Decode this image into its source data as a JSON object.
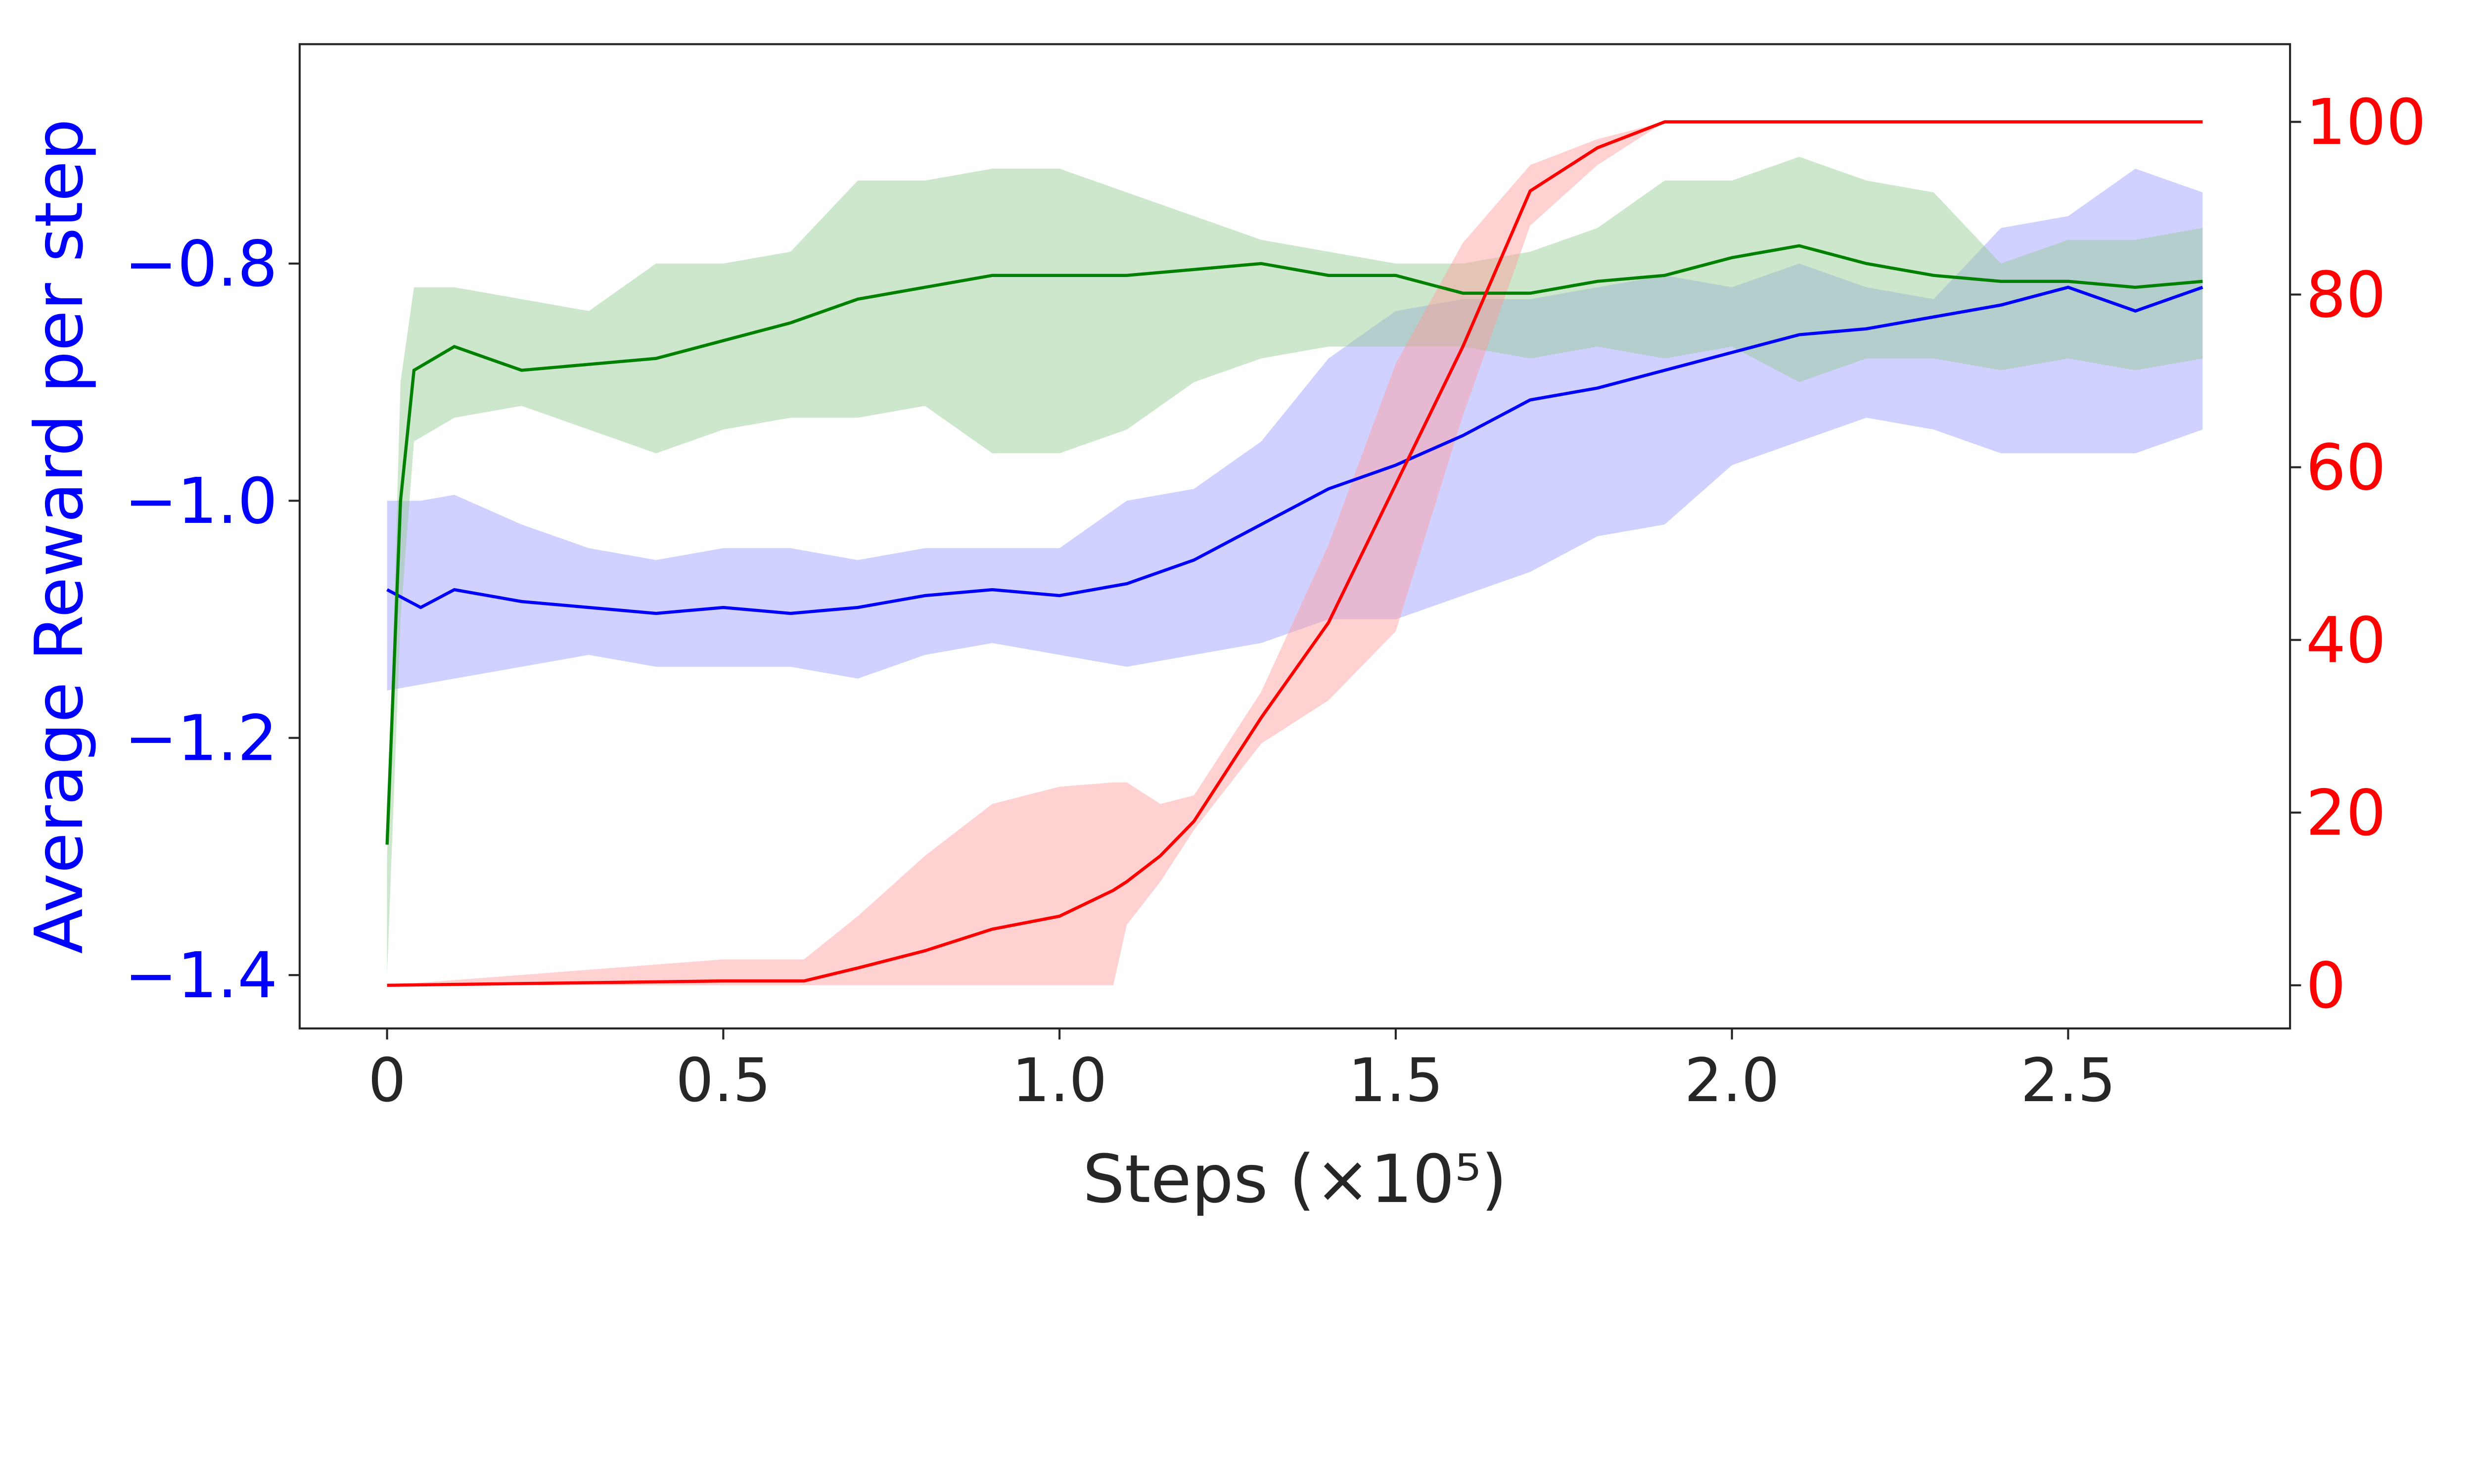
{
  "chart_data": {
    "type": "line",
    "title": "",
    "xlabel": "Steps (×10⁵)",
    "ylabel_left": "Average Reward per step",
    "ylabel_right": "",
    "xlim": [
      -0.13,
      2.83
    ],
    "ylim_left": [
      -1.445,
      -0.615
    ],
    "ylim_right": [
      -5,
      109
    ],
    "xticks": [
      0,
      0.5,
      1.0,
      1.5,
      2.0,
      2.5
    ],
    "xtick_labels": [
      "0",
      "0.5",
      "1.0",
      "1.5",
      "2.0",
      "2.5"
    ],
    "yticks_left": [
      -0.8,
      -1.0,
      -1.2,
      -1.4
    ],
    "ytick_labels_left": [
      "−0.8",
      "−1.0",
      "−1.2",
      "−1.4"
    ],
    "yticks_right": [
      100,
      80,
      60,
      40,
      20,
      0
    ],
    "ytick_labels_right": [
      "100",
      "80",
      "60",
      "40",
      "20",
      "0"
    ],
    "grid": false,
    "colors": {
      "left_axis": "#0000ff",
      "right_axis": "#ff0000",
      "axis": "#262626"
    },
    "series": [
      {
        "name": "blue",
        "axis": "left",
        "color": "#0000ff",
        "band_color": "#9999ff",
        "x": [
          0,
          0.05,
          0.1,
          0.2,
          0.3,
          0.4,
          0.5,
          0.6,
          0.7,
          0.8,
          0.9,
          1.0,
          1.1,
          1.2,
          1.3,
          1.4,
          1.5,
          1.6,
          1.7,
          1.8,
          1.9,
          2.0,
          2.1,
          2.2,
          2.3,
          2.4,
          2.5,
          2.6,
          2.7
        ],
        "mean": [
          -1.075,
          -1.09,
          -1.075,
          -1.085,
          -1.09,
          -1.095,
          -1.09,
          -1.095,
          -1.09,
          -1.08,
          -1.075,
          -1.08,
          -1.07,
          -1.05,
          -1.02,
          -0.99,
          -0.97,
          -0.945,
          -0.915,
          -0.905,
          -0.89,
          -0.875,
          -0.86,
          -0.855,
          -0.845,
          -0.835,
          -0.82,
          -0.84,
          -0.82
        ],
        "upper": [
          -1.0,
          -1.0,
          -0.995,
          -1.02,
          -1.04,
          -1.05,
          -1.04,
          -1.04,
          -1.05,
          -1.04,
          -1.04,
          -1.04,
          -1.0,
          -0.99,
          -0.95,
          -0.88,
          -0.84,
          -0.83,
          -0.83,
          -0.82,
          -0.81,
          -0.82,
          -0.8,
          -0.82,
          -0.83,
          -0.77,
          -0.76,
          -0.72,
          -0.74
        ],
        "lower": [
          -1.16,
          -1.155,
          -1.15,
          -1.14,
          -1.13,
          -1.14,
          -1.14,
          -1.14,
          -1.15,
          -1.13,
          -1.12,
          -1.13,
          -1.14,
          -1.13,
          -1.12,
          -1.1,
          -1.1,
          -1.08,
          -1.06,
          -1.03,
          -1.02,
          -0.97,
          -0.95,
          -0.93,
          -0.94,
          -0.96,
          -0.96,
          -0.96,
          -0.94
        ]
      },
      {
        "name": "green",
        "axis": "left",
        "color": "#008000",
        "band_color": "#8fc98f",
        "x": [
          0,
          0.02,
          0.04,
          0.1,
          0.2,
          0.3,
          0.4,
          0.5,
          0.6,
          0.7,
          0.8,
          0.9,
          1.0,
          1.1,
          1.2,
          1.3,
          1.4,
          1.5,
          1.6,
          1.7,
          1.8,
          1.9,
          2.0,
          2.1,
          2.2,
          2.3,
          2.4,
          2.5,
          2.6,
          2.7
        ],
        "mean": [
          -1.29,
          -1.0,
          -0.89,
          -0.87,
          -0.89,
          -0.885,
          -0.88,
          -0.865,
          -0.85,
          -0.83,
          -0.82,
          -0.81,
          -0.81,
          -0.81,
          -0.805,
          -0.8,
          -0.81,
          -0.81,
          -0.825,
          -0.825,
          -0.815,
          -0.81,
          -0.795,
          -0.785,
          -0.8,
          -0.81,
          -0.815,
          -0.815,
          -0.82,
          -0.815
        ],
        "upper": [
          -1.3,
          -0.9,
          -0.82,
          -0.82,
          -0.83,
          -0.84,
          -0.8,
          -0.8,
          -0.79,
          -0.73,
          -0.73,
          -0.72,
          -0.72,
          -0.74,
          -0.76,
          -0.78,
          -0.79,
          -0.8,
          -0.8,
          -0.79,
          -0.77,
          -0.73,
          -0.73,
          -0.71,
          -0.73,
          -0.74,
          -0.8,
          -0.78,
          -0.78,
          -0.77
        ],
        "lower": [
          -1.4,
          -1.1,
          -0.95,
          -0.93,
          -0.92,
          -0.94,
          -0.96,
          -0.94,
          -0.93,
          -0.93,
          -0.92,
          -0.96,
          -0.96,
          -0.94,
          -0.9,
          -0.88,
          -0.87,
          -0.87,
          -0.87,
          -0.88,
          -0.87,
          -0.88,
          -0.87,
          -0.9,
          -0.88,
          -0.88,
          -0.89,
          -0.88,
          -0.89,
          -0.88
        ]
      },
      {
        "name": "red",
        "axis": "right",
        "color": "#ff0000",
        "band_color": "#ff9999",
        "x": [
          0,
          0.5,
          0.62,
          0.7,
          0.8,
          0.9,
          1.0,
          1.08,
          1.1,
          1.15,
          1.2,
          1.3,
          1.4,
          1.5,
          1.6,
          1.7,
          1.8,
          1.9,
          2.7
        ],
        "mean": [
          0,
          0.5,
          0.5,
          2,
          4,
          6.5,
          8,
          11,
          12,
          15,
          19,
          31,
          42,
          58,
          74,
          92,
          97,
          100,
          100
        ],
        "upper": [
          0,
          3,
          3,
          8,
          15,
          21,
          23,
          23.5,
          23.5,
          21,
          22,
          34,
          51,
          72,
          86,
          95,
          98,
          100,
          100
        ],
        "lower": [
          0,
          0,
          0,
          0,
          0,
          0,
          0,
          0,
          7,
          12,
          18,
          28,
          33,
          41,
          66,
          88,
          95,
          100,
          100
        ]
      }
    ]
  }
}
